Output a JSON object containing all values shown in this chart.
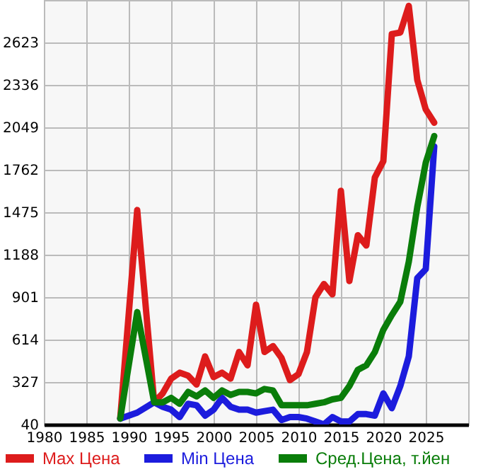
{
  "chart_data": {
    "type": "line",
    "x": [
      1989,
      1991,
      1993,
      1994,
      1995,
      1996,
      1997,
      1998,
      1999,
      2000,
      2001,
      2002,
      2003,
      2004,
      2005,
      2006,
      2007,
      2008,
      2009,
      2010,
      2011,
      2012,
      2013,
      2014,
      2015,
      2016,
      2017,
      2018,
      2019,
      2020,
      2021,
      2022,
      2023,
      2024,
      2025,
      2026
    ],
    "series": [
      {
        "name": "Max Цена",
        "color": "#dd1c1c",
        "values": [
          80,
          1490,
          190,
          250,
          350,
          390,
          370,
          310,
          500,
          360,
          390,
          350,
          530,
          440,
          850,
          530,
          570,
          490,
          340,
          380,
          530,
          900,
          990,
          920,
          1620,
          1010,
          1320,
          1250,
          1710,
          1820,
          2680,
          2690,
          2870,
          2370,
          2170,
          2080
        ]
      },
      {
        "name": "Min Цена",
        "color": "#1c1cdd",
        "values": [
          80,
          120,
          190,
          160,
          140,
          90,
          180,
          170,
          100,
          140,
          220,
          160,
          140,
          140,
          120,
          130,
          140,
          70,
          90,
          90,
          80,
          60,
          40,
          90,
          60,
          60,
          110,
          110,
          100,
          250,
          150,
          300,
          500,
          1030,
          1090,
          1920
        ]
      },
      {
        "name": "Сред.Цена, т.йен",
        "color": "#0a7d0a",
        "values": [
          80,
          800,
          190,
          190,
          220,
          180,
          260,
          230,
          270,
          220,
          270,
          240,
          260,
          260,
          250,
          280,
          270,
          170,
          170,
          170,
          170,
          180,
          190,
          210,
          220,
          300,
          410,
          440,
          530,
          680,
          780,
          870,
          1140,
          1510,
          1810,
          1990
        ]
      }
    ],
    "xlim": [
      1980,
      2030
    ],
    "xticks": [
      1980,
      1985,
      1990,
      1995,
      2000,
      2005,
      2010,
      2015,
      2020,
      2025
    ],
    "ylim": [
      40,
      2910
    ],
    "yticks": [
      40,
      327,
      614,
      901,
      1188,
      1475,
      1762,
      2049,
      2336,
      2623
    ],
    "grid": true,
    "legend": "bottom"
  }
}
